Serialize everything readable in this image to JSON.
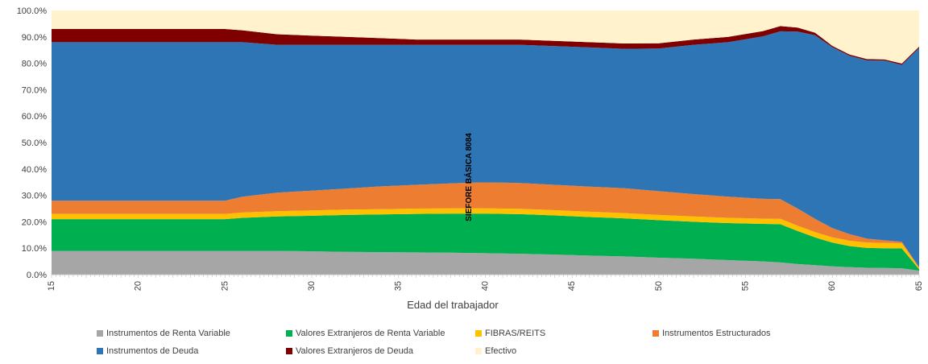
{
  "chart_data": {
    "type": "area",
    "stacked": true,
    "xlabel": "Edad del trabajador",
    "ylabel": "",
    "x": [
      15,
      20,
      25,
      26,
      28,
      30,
      32,
      34,
      36,
      38,
      39,
      40,
      42,
      44,
      46,
      48,
      50,
      52,
      54,
      56,
      57,
      58,
      59,
      60,
      61,
      62,
      63,
      64,
      65
    ],
    "x_ticks": [
      15,
      20,
      25,
      30,
      35,
      40,
      45,
      50,
      55,
      60,
      65
    ],
    "ylim": [
      0,
      100
    ],
    "y_ticks": [
      0,
      10,
      20,
      30,
      40,
      50,
      60,
      70,
      80,
      90,
      100
    ],
    "y_tick_format": "percent_1dp",
    "grid": false,
    "legend_position": "bottom",
    "annotation": {
      "text": "SIEFORE BÁSICA 8084",
      "x": 39
    },
    "series": [
      {
        "name": "Instrumentos de Renta Variable",
        "color": "#A6A6A6",
        "values": [
          9,
          9,
          9,
          9,
          9,
          8.8,
          8.6,
          8.5,
          8.4,
          8.3,
          8.2,
          8.1,
          7.9,
          7.6,
          7.2,
          6.9,
          6.4,
          6,
          5.5,
          5,
          4.6,
          4,
          3.6,
          3.1,
          2.8,
          2.6,
          2.5,
          2.4,
          1.5
        ]
      },
      {
        "name": "Valores Extranjeros de Renta Variable",
        "color": "#00B050",
        "values": [
          12,
          12,
          12,
          12.5,
          13,
          13.5,
          14,
          14.3,
          14.6,
          14.8,
          14.9,
          15,
          15,
          14.8,
          14.6,
          14.4,
          14.2,
          14,
          14,
          14.2,
          14.5,
          12.5,
          10.5,
          9,
          8,
          7.5,
          7.5,
          7.5,
          0.5
        ]
      },
      {
        "name": "FIBRAS/REITS",
        "color": "#FFC000",
        "values": [
          2,
          2,
          2,
          2,
          2,
          2,
          2,
          2,
          2,
          2,
          2,
          2,
          2,
          2,
          2,
          2,
          2,
          2,
          2,
          2,
          2,
          2,
          2,
          2,
          2,
          2,
          2,
          2,
          0.5
        ]
      },
      {
        "name": "Instrumentos Estructurados",
        "color": "#ED7D31",
        "values": [
          5,
          5,
          5,
          6,
          7,
          7.5,
          8,
          8.6,
          9,
          9.4,
          9.7,
          9.8,
          9.8,
          9.6,
          9.5,
          9.4,
          9,
          8.5,
          8,
          7.5,
          7.5,
          6.5,
          5,
          3.5,
          2.5,
          1.5,
          1,
          0.5,
          0.3
        ]
      },
      {
        "name": "Instrumentos de Deuda",
        "color": "#2E75B6",
        "values": [
          60,
          60,
          60,
          58.5,
          56,
          55.2,
          54.4,
          53.6,
          53,
          52.5,
          52.2,
          52.1,
          52.3,
          52.5,
          52.7,
          52.8,
          54,
          56.5,
          58.5,
          61.5,
          63.5,
          67,
          69.5,
          68.5,
          67.5,
          67.5,
          68,
          67,
          83
        ]
      },
      {
        "name": "Valores Extranjeros de Deuda",
        "color": "#7F0000",
        "values": [
          5,
          5,
          5,
          4.5,
          4,
          3.5,
          3,
          2.5,
          2,
          2,
          2,
          2,
          2,
          2,
          2,
          2,
          2,
          2,
          2,
          2,
          2,
          1.5,
          1,
          0.5,
          0.5,
          0.5,
          0.5,
          0.5,
          0.5
        ]
      },
      {
        "name": "Efectivo",
        "color": "#FFF2CC",
        "values": [
          7,
          7,
          7,
          7.5,
          9,
          9.5,
          10,
          10.5,
          11,
          11,
          11,
          11,
          11,
          11.5,
          12,
          12.5,
          12.4,
          11,
          10,
          7.8,
          5.9,
          6.5,
          8.4,
          13.4,
          16.7,
          18.4,
          18.5,
          20.1,
          13.7
        ]
      }
    ]
  }
}
